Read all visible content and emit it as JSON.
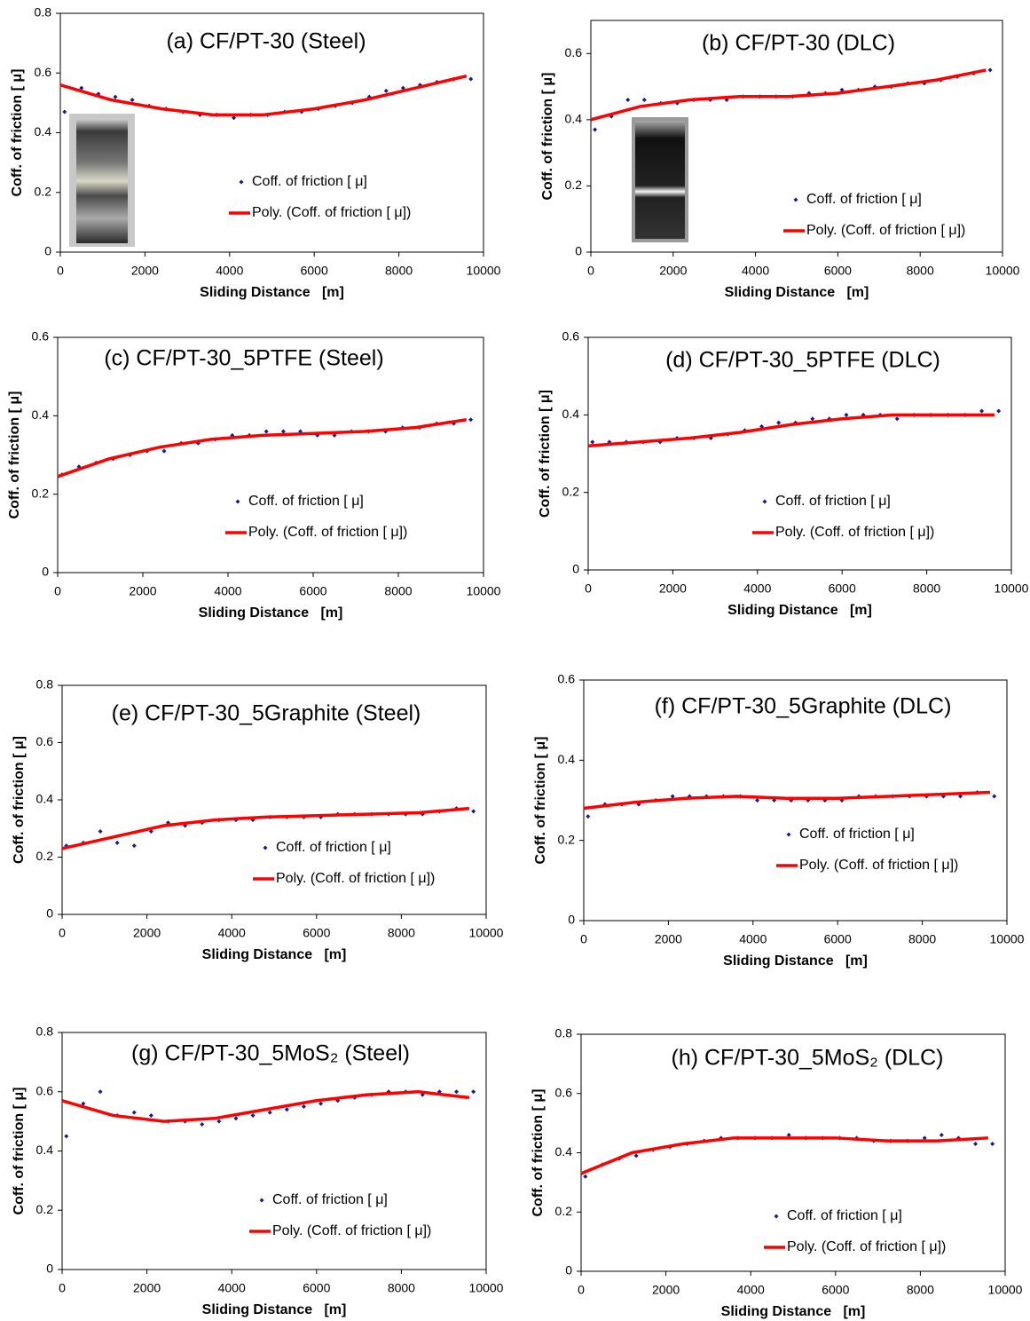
{
  "chart_data": [
    {
      "type": "scatter",
      "title": "(a) CF/PT-30 (Steel)",
      "x_label": "Sliding Distance   [m]",
      "y_label": "Coff. of friction [ μ]",
      "xlim": [
        0,
        10000
      ],
      "xticks": [
        0,
        2000,
        4000,
        6000,
        8000,
        10000
      ],
      "ylim": [
        0,
        0.8
      ],
      "yticks": [
        0,
        0.2,
        0.4,
        0.6,
        0.8
      ],
      "series": [
        {
          "name": "Coff. of friction [ μ]",
          "type": "scatter",
          "color": "#1a1a8c",
          "x": [
            100,
            500,
            900,
            1300,
            1700,
            2100,
            2500,
            2900,
            3300,
            3700,
            4100,
            4500,
            4900,
            5300,
            5700,
            6100,
            6500,
            6900,
            7300,
            7700,
            8100,
            8500,
            8900,
            9300,
            9700
          ],
          "values": [
            0.47,
            0.55,
            0.53,
            0.52,
            0.51,
            0.49,
            0.48,
            0.47,
            0.46,
            0.46,
            0.45,
            0.46,
            0.46,
            0.47,
            0.47,
            0.48,
            0.49,
            0.5,
            0.52,
            0.54,
            0.55,
            0.56,
            0.57,
            0.58,
            0.58
          ]
        },
        {
          "name": "Poly. (Coff. of friction [ μ])",
          "type": "line",
          "color": "#ff0000",
          "x": [
            0,
            1200,
            2400,
            3600,
            4800,
            6000,
            7200,
            8400,
            9600
          ],
          "values": [
            0.56,
            0.51,
            0.48,
            0.46,
            0.46,
            0.48,
            0.51,
            0.55,
            0.59
          ]
        }
      ]
    },
    {
      "type": "scatter",
      "title": "(b) CF/PT-30 (DLC)",
      "x_label": "Sliding Distance   [m]",
      "y_label": "Coff. of friction [ μ]",
      "xlim": [
        0,
        10000
      ],
      "xticks": [
        0,
        2000,
        4000,
        6000,
        8000,
        10000
      ],
      "ylim": [
        0,
        0.7
      ],
      "yticks": [
        0,
        0.2,
        0.4,
        0.6
      ],
      "series": [
        {
          "name": "Coff. of friction [ μ]",
          "type": "scatter",
          "color": "#1a1a8c",
          "x": [
            100,
            500,
            900,
            1300,
            1700,
            2100,
            2500,
            2900,
            3300,
            3700,
            4100,
            4500,
            4900,
            5300,
            5700,
            6100,
            6500,
            6900,
            7300,
            7700,
            8100,
            8500,
            8900,
            9300,
            9700
          ],
          "values": [
            0.37,
            0.41,
            0.46,
            0.46,
            0.45,
            0.45,
            0.46,
            0.46,
            0.46,
            0.47,
            0.47,
            0.47,
            0.47,
            0.48,
            0.48,
            0.49,
            0.49,
            0.5,
            0.5,
            0.51,
            0.51,
            0.52,
            0.53,
            0.54,
            0.55
          ]
        },
        {
          "name": "Poly. (Coff. of friction [ μ])",
          "type": "line",
          "color": "#ff0000",
          "x": [
            0,
            1200,
            2400,
            3600,
            4800,
            6000,
            7200,
            8400,
            9600
          ],
          "values": [
            0.4,
            0.44,
            0.46,
            0.47,
            0.47,
            0.48,
            0.5,
            0.52,
            0.55
          ]
        }
      ]
    },
    {
      "type": "scatter",
      "title": "(c) CF/PT-30_5PTFE (Steel)",
      "x_label": "Sliding Distance   [m]",
      "y_label": "Coff. of friction [ μ]",
      "xlim": [
        0,
        10000
      ],
      "xticks": [
        0,
        2000,
        4000,
        6000,
        8000,
        10000
      ],
      "ylim": [
        0,
        0.6
      ],
      "yticks": [
        0,
        0.2,
        0.4,
        0.6
      ],
      "series": [
        {
          "name": "Coff. of friction [ μ]",
          "type": "scatter",
          "color": "#1a1a8c",
          "x": [
            100,
            500,
            900,
            1300,
            1700,
            2100,
            2500,
            2900,
            3300,
            3700,
            4100,
            4500,
            4900,
            5300,
            5700,
            6100,
            6500,
            6900,
            7300,
            7700,
            8100,
            8500,
            8900,
            9300,
            9700
          ],
          "values": [
            0.25,
            0.27,
            0.28,
            0.29,
            0.3,
            0.31,
            0.31,
            0.33,
            0.33,
            0.34,
            0.35,
            0.35,
            0.36,
            0.36,
            0.36,
            0.35,
            0.35,
            0.36,
            0.36,
            0.36,
            0.37,
            0.37,
            0.38,
            0.38,
            0.39
          ]
        },
        {
          "name": "Poly. (Coff. of friction [ μ])",
          "type": "line",
          "color": "#ff0000",
          "x": [
            0,
            1200,
            2400,
            3600,
            4800,
            6000,
            7200,
            8400,
            9600
          ],
          "values": [
            0.245,
            0.29,
            0.32,
            0.34,
            0.35,
            0.355,
            0.36,
            0.37,
            0.39
          ]
        }
      ]
    },
    {
      "type": "scatter",
      "title": "(d) CF/PT-30_5PTFE (DLC)",
      "x_label": "Sliding Distance   [m]",
      "y_label": "Coff. of friction [ μ]",
      "xlim": [
        0,
        10000
      ],
      "xticks": [
        0,
        2000,
        4000,
        6000,
        8000,
        10000
      ],
      "ylim": [
        0,
        0.6
      ],
      "yticks": [
        0,
        0.2,
        0.4,
        0.6
      ],
      "series": [
        {
          "name": "Coff. of friction [ μ]",
          "type": "scatter",
          "color": "#1a1a8c",
          "x": [
            100,
            500,
            900,
            1300,
            1700,
            2100,
            2500,
            2900,
            3300,
            3700,
            4100,
            4500,
            4900,
            5300,
            5700,
            6100,
            6500,
            6900,
            7300,
            7700,
            8100,
            8500,
            8900,
            9300,
            9700
          ],
          "values": [
            0.33,
            0.33,
            0.33,
            0.33,
            0.33,
            0.34,
            0.34,
            0.34,
            0.35,
            0.36,
            0.37,
            0.38,
            0.38,
            0.39,
            0.39,
            0.4,
            0.4,
            0.4,
            0.39,
            0.4,
            0.4,
            0.4,
            0.4,
            0.41,
            0.41
          ]
        },
        {
          "name": "Poly. (Coff. of friction [ μ])",
          "type": "line",
          "color": "#ff0000",
          "x": [
            0,
            1200,
            2400,
            3600,
            4800,
            6000,
            7200,
            8400,
            9600
          ],
          "values": [
            0.32,
            0.33,
            0.34,
            0.355,
            0.375,
            0.39,
            0.4,
            0.4,
            0.4
          ]
        }
      ]
    },
    {
      "type": "scatter",
      "title": "(e) CF/PT-30_5Graphite (Steel)",
      "x_label": "Sliding Distance   [m]",
      "y_label": "Coff. of friction [ μ]",
      "xlim": [
        0,
        10000
      ],
      "xticks": [
        0,
        2000,
        4000,
        6000,
        8000,
        10000
      ],
      "ylim": [
        0,
        0.8
      ],
      "yticks": [
        0,
        0.2,
        0.4,
        0.6,
        0.8
      ],
      "series": [
        {
          "name": "Coff. of friction [ μ]",
          "type": "scatter",
          "color": "#1a1a8c",
          "x": [
            100,
            500,
            900,
            1300,
            1700,
            2100,
            2500,
            2900,
            3300,
            3700,
            4100,
            4500,
            4900,
            5300,
            5700,
            6100,
            6500,
            6900,
            7300,
            7700,
            8100,
            8500,
            8900,
            9300,
            9700
          ],
          "values": [
            0.24,
            0.25,
            0.29,
            0.25,
            0.24,
            0.29,
            0.32,
            0.31,
            0.32,
            0.33,
            0.33,
            0.33,
            0.34,
            0.34,
            0.34,
            0.34,
            0.35,
            0.35,
            0.35,
            0.35,
            0.35,
            0.35,
            0.36,
            0.37,
            0.36
          ]
        },
        {
          "name": "Poly. (Coff. of friction [ μ])",
          "type": "line",
          "color": "#ff0000",
          "x": [
            0,
            1200,
            2400,
            3600,
            4800,
            6000,
            7200,
            8400,
            9600
          ],
          "values": [
            0.23,
            0.27,
            0.31,
            0.33,
            0.34,
            0.345,
            0.35,
            0.355,
            0.37
          ]
        }
      ]
    },
    {
      "type": "scatter",
      "title": "(f) CF/PT-30_5Graphite (DLC)",
      "x_label": "Sliding Distance   [m]",
      "y_label": "Coff. of friction [ μ]",
      "xlim": [
        0,
        10000
      ],
      "xticks": [
        0,
        2000,
        4000,
        6000,
        8000,
        10000
      ],
      "ylim": [
        0,
        0.6
      ],
      "yticks": [
        0,
        0.2,
        0.4,
        0.6
      ],
      "series": [
        {
          "name": "Coff. of friction [ μ]",
          "type": "scatter",
          "color": "#1a1a8c",
          "x": [
            100,
            500,
            900,
            1300,
            1700,
            2100,
            2500,
            2900,
            3300,
            3700,
            4100,
            4500,
            4900,
            5300,
            5700,
            6100,
            6500,
            6900,
            7300,
            7700,
            8100,
            8500,
            8900,
            9300,
            9700
          ],
          "values": [
            0.26,
            0.29,
            0.29,
            0.29,
            0.3,
            0.31,
            0.31,
            0.31,
            0.31,
            0.31,
            0.3,
            0.3,
            0.3,
            0.3,
            0.3,
            0.3,
            0.31,
            0.31,
            0.31,
            0.31,
            0.31,
            0.31,
            0.31,
            0.32,
            0.31
          ]
        },
        {
          "name": "Poly. (Coff. of friction [ μ])",
          "type": "line",
          "color": "#ff0000",
          "x": [
            0,
            1200,
            2400,
            3600,
            4800,
            6000,
            7200,
            8400,
            9600
          ],
          "values": [
            0.28,
            0.295,
            0.305,
            0.31,
            0.305,
            0.305,
            0.31,
            0.315,
            0.32
          ]
        }
      ]
    },
    {
      "type": "scatter",
      "title": "(g) CF/PT-30_5MoS₂ (Steel)",
      "x_label": "Sliding Distance   [m]",
      "y_label": "Coff. of friction [ μ]",
      "xlim": [
        0,
        10000
      ],
      "xticks": [
        0,
        2000,
        4000,
        6000,
        8000,
        10000
      ],
      "ylim": [
        0,
        0.8
      ],
      "yticks": [
        0,
        0.2,
        0.4,
        0.6,
        0.8
      ],
      "series": [
        {
          "name": "Coff. of friction [ μ]",
          "type": "scatter",
          "color": "#1a1a8c",
          "x": [
            100,
            500,
            900,
            1300,
            1700,
            2100,
            2500,
            2900,
            3300,
            3700,
            4100,
            4500,
            4900,
            5300,
            5700,
            6100,
            6500,
            6900,
            7300,
            7700,
            8100,
            8500,
            8900,
            9300,
            9700
          ],
          "values": [
            0.45,
            0.56,
            0.6,
            0.52,
            0.53,
            0.52,
            0.5,
            0.5,
            0.49,
            0.5,
            0.51,
            0.52,
            0.53,
            0.54,
            0.55,
            0.56,
            0.57,
            0.58,
            0.59,
            0.6,
            0.6,
            0.59,
            0.6,
            0.6,
            0.6
          ]
        },
        {
          "name": "Poly. (Coff. of friction [ μ])",
          "type": "line",
          "color": "#ff0000",
          "x": [
            0,
            1200,
            2400,
            3600,
            4800,
            6000,
            7200,
            8400,
            9600
          ],
          "values": [
            0.57,
            0.52,
            0.5,
            0.51,
            0.54,
            0.57,
            0.59,
            0.6,
            0.58
          ]
        }
      ]
    },
    {
      "type": "scatter",
      "title": "(h) CF/PT-30_5MoS₂ (DLC)",
      "x_label": "Sliding Distance   [m]",
      "y_label": "Coff. of friction [ μ]",
      "xlim": [
        0,
        10000
      ],
      "xticks": [
        0,
        2000,
        4000,
        6000,
        8000,
        10000
      ],
      "ylim": [
        0,
        0.8
      ],
      "yticks": [
        0,
        0.2,
        0.4,
        0.6,
        0.8
      ],
      "series": [
        {
          "name": "Coff. of friction [ μ]",
          "type": "scatter",
          "color": "#1a1a8c",
          "x": [
            100,
            500,
            900,
            1300,
            1700,
            2100,
            2500,
            2900,
            3300,
            3700,
            4100,
            4500,
            4900,
            5300,
            5700,
            6100,
            6500,
            6900,
            7300,
            7700,
            8100,
            8500,
            8900,
            9300,
            9700
          ],
          "values": [
            0.32,
            0.36,
            0.38,
            0.39,
            0.41,
            0.42,
            0.43,
            0.44,
            0.45,
            0.45,
            0.45,
            0.45,
            0.46,
            0.45,
            0.45,
            0.45,
            0.45,
            0.44,
            0.44,
            0.44,
            0.45,
            0.46,
            0.45,
            0.43,
            0.43
          ]
        },
        {
          "name": "Poly. (Coff. of friction [ μ])",
          "type": "line",
          "color": "#ff0000",
          "x": [
            0,
            1200,
            2400,
            3600,
            4800,
            6000,
            7200,
            8400,
            9600
          ],
          "values": [
            0.33,
            0.4,
            0.43,
            0.45,
            0.45,
            0.45,
            0.44,
            0.44,
            0.45
          ]
        }
      ]
    }
  ]
}
